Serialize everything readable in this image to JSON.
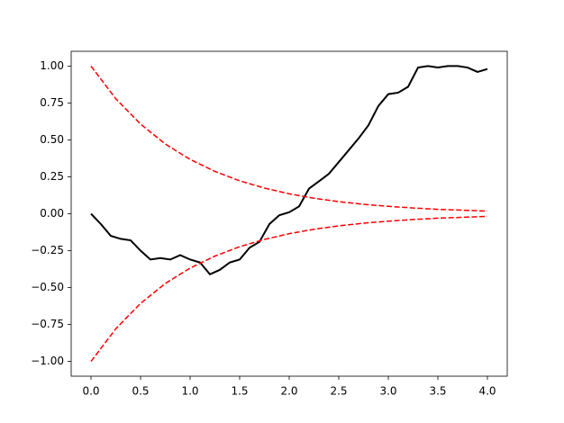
{
  "chart_data": {
    "type": "line",
    "xlim": [
      -0.2,
      4.2
    ],
    "ylim": [
      -1.1,
      1.1
    ],
    "xticks": [
      {
        "value": 0,
        "label": "0.0"
      },
      {
        "value": 0.5,
        "label": "0.5"
      },
      {
        "value": 1,
        "label": "1.0"
      },
      {
        "value": 1.5,
        "label": "1.5"
      },
      {
        "value": 2,
        "label": "2.0"
      },
      {
        "value": 2.5,
        "label": "2.5"
      },
      {
        "value": 3,
        "label": "3.0"
      },
      {
        "value": 3.5,
        "label": "3.5"
      },
      {
        "value": 4,
        "label": "4.0"
      }
    ],
    "yticks": [
      {
        "value": -1,
        "label": "−1.00"
      },
      {
        "value": -0.75,
        "label": "−0.75"
      },
      {
        "value": -0.5,
        "label": "−0.50"
      },
      {
        "value": -0.25,
        "label": "−0.25"
      },
      {
        "value": 0,
        "label": "0.00"
      },
      {
        "value": 0.25,
        "label": "0.25"
      },
      {
        "value": 0.5,
        "label": "0.50"
      },
      {
        "value": 0.75,
        "label": "0.75"
      },
      {
        "value": 1,
        "label": "1.00"
      }
    ],
    "grid": false,
    "series": [
      {
        "color": "#000000",
        "dash": "solid",
        "x": [
          0,
          0.1,
          0.2,
          0.3,
          0.4,
          0.5,
          0.6,
          0.7,
          0.8,
          0.9,
          1.0,
          1.1,
          1.2,
          1.3,
          1.4,
          1.5,
          1.6,
          1.7,
          1.8,
          1.9,
          2.0,
          2.1,
          2.2,
          2.3,
          2.4,
          2.5,
          2.6,
          2.7,
          2.8,
          2.9,
          3.0,
          3.1,
          3.2,
          3.3,
          3.4,
          3.5,
          3.6,
          3.7,
          3.8,
          3.9,
          4.0
        ],
        "values": [
          0,
          -0.07,
          -0.15,
          -0.17,
          -0.18,
          -0.25,
          -0.31,
          -0.3,
          -0.31,
          -0.28,
          -0.31,
          -0.33,
          -0.41,
          -0.38,
          -0.33,
          -0.31,
          -0.23,
          -0.19,
          -0.07,
          -0.01,
          0.01,
          0.05,
          0.17,
          0.22,
          0.27,
          0.35,
          0.43,
          0.51,
          0.6,
          0.73,
          0.81,
          0.82,
          0.86,
          0.99,
          1.0,
          0.99,
          1.0,
          1.0,
          0.99,
          0.96,
          0.98
        ]
      },
      {
        "color": "#ff0000",
        "dash": "dashed",
        "x": [
          0,
          0.25,
          0.5,
          0.75,
          1,
          1.25,
          1.5,
          1.75,
          2,
          2.25,
          2.5,
          2.75,
          3,
          3.25,
          3.5,
          3.75,
          4
        ],
        "values": [
          1,
          0.779,
          0.607,
          0.472,
          0.368,
          0.287,
          0.223,
          0.174,
          0.135,
          0.105,
          0.082,
          0.064,
          0.05,
          0.039,
          0.03,
          0.024,
          0.018
        ]
      },
      {
        "color": "#ff0000",
        "dash": "dashed",
        "x": [
          0,
          0.25,
          0.5,
          0.75,
          1,
          1.25,
          1.5,
          1.75,
          2,
          2.25,
          2.5,
          2.75,
          3,
          3.25,
          3.5,
          3.75,
          4
        ],
        "values": [
          -1,
          -0.779,
          -0.607,
          -0.472,
          -0.368,
          -0.287,
          -0.223,
          -0.174,
          -0.135,
          -0.105,
          -0.082,
          -0.064,
          -0.05,
          -0.039,
          -0.03,
          -0.024,
          -0.018
        ]
      }
    ]
  }
}
